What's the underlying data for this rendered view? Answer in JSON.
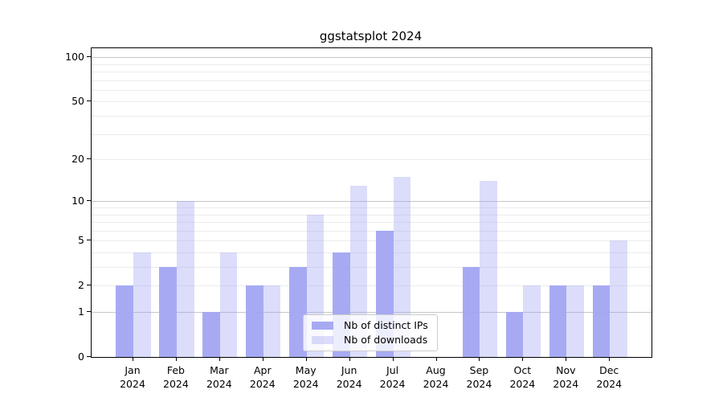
{
  "chart_data": {
    "type": "bar",
    "title": "ggstatsplot 2024",
    "scale": "log1p",
    "months": [
      "Jan",
      "Feb",
      "Mar",
      "Apr",
      "May",
      "Jun",
      "Jul",
      "Aug",
      "Sep",
      "Oct",
      "Nov",
      "Dec"
    ],
    "year": "2024",
    "series": [
      {
        "name": "Nb of distinct IPs",
        "color": "rgba(162,165,242,0.95)",
        "values": [
          2,
          3,
          1,
          2,
          3,
          4,
          6,
          0,
          3,
          1,
          2,
          2
        ]
      },
      {
        "name": "Nb of downloads",
        "color": "rgba(162,165,242,0.38)",
        "values": [
          4,
          10,
          4,
          2,
          8,
          13,
          15,
          0,
          14,
          2,
          2,
          5
        ]
      }
    ],
    "y_ticks": [
      0,
      1,
      2,
      5,
      10,
      20,
      50,
      100
    ],
    "ylim": [
      0,
      115
    ],
    "major_gridlines": [
      1,
      10,
      100
    ],
    "minor_gridlines": [
      2,
      3,
      4,
      5,
      6,
      7,
      8,
      9,
      20,
      30,
      40,
      50,
      60,
      70,
      80,
      90
    ],
    "grid_colors": {
      "major": "#c6c6c6",
      "minor": "#ececec"
    },
    "legend_position": "inside bottom-center"
  }
}
